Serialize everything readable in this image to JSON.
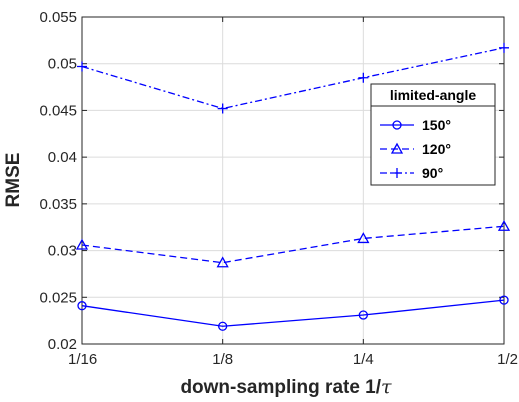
{
  "chart_data": {
    "type": "line",
    "title": "",
    "xlabel": "down-sampling rate 1/",
    "xlabel_symbol": "τ",
    "ylabel": "RMSE",
    "categories": [
      "1/16",
      "1/8",
      "1/4",
      "1/2"
    ],
    "ylim": [
      0.02,
      0.055
    ],
    "yticks": [
      0.02,
      0.025,
      0.03,
      0.035,
      0.04,
      0.045,
      0.05,
      0.055
    ],
    "ytick_labels": [
      "0.02",
      "0.025",
      "0.03",
      "0.035",
      "0.04",
      "0.045",
      "0.05",
      "0.055"
    ],
    "grid": true,
    "legend": {
      "title": "limited-angle",
      "placement": "top-right"
    },
    "series_color": "#0000ff",
    "series": [
      {
        "name": "150°",
        "values": [
          0.0241,
          0.0219,
          0.0231,
          0.0247
        ],
        "marker": "circle",
        "line": "solid"
      },
      {
        "name": "120°",
        "values": [
          0.0306,
          0.0287,
          0.0313,
          0.0326
        ],
        "marker": "triangle",
        "line": "dashed"
      },
      {
        "name": "90°",
        "values": [
          0.0497,
          0.0452,
          0.0485,
          0.0517
        ],
        "marker": "plus",
        "line": "dashdot"
      }
    ]
  }
}
